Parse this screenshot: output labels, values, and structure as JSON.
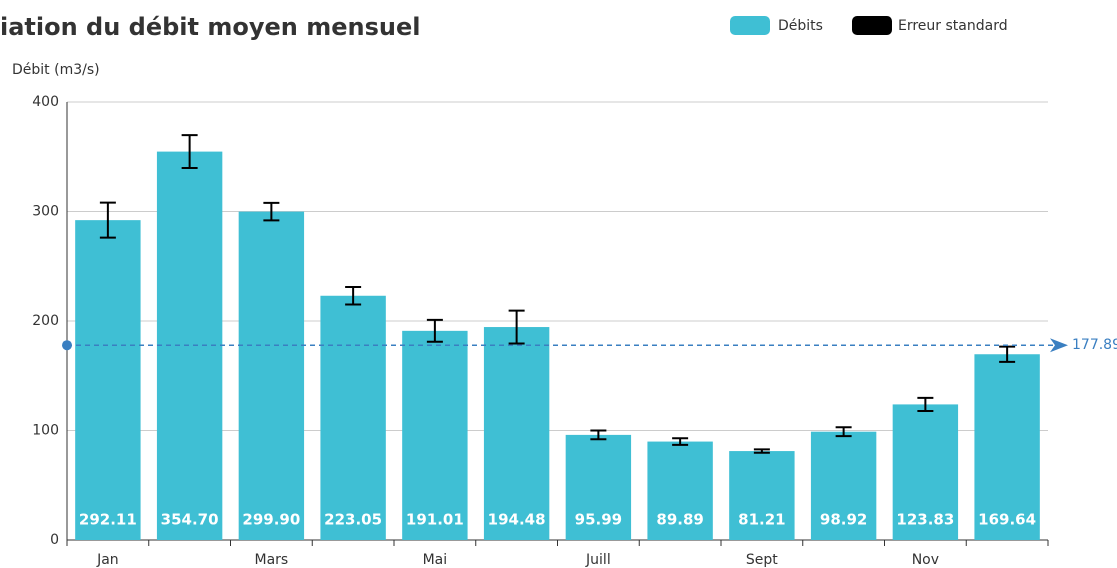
{
  "chart_data": {
    "type": "bar",
    "title": "iation du débit moyen mensuel",
    "y_label": "Débit (m3/s)",
    "categories": [
      "Jan",
      null,
      "Mars",
      null,
      "Mai",
      null,
      "Juill",
      null,
      "Sept",
      null,
      "Nov",
      null
    ],
    "series": [
      {
        "name": "Débits",
        "color": "#3fbfd4",
        "values": [
          292.11,
          354.7,
          299.9,
          223.05,
          191.01,
          194.48,
          95.99,
          89.89,
          81.21,
          98.92,
          123.83,
          169.64
        ],
        "value_labels": [
          "292.11",
          "354.70",
          "299.90",
          "223.05",
          "191.01",
          "194.48",
          "95.99",
          "89.89",
          "81.21",
          "98.92",
          "123.83",
          "169.64"
        ]
      },
      {
        "name": "Erreur standard",
        "color": "#000000",
        "values": [
          16,
          15,
          8,
          8,
          10,
          15,
          4,
          3,
          1.5,
          4,
          6,
          7
        ]
      }
    ],
    "mean_line": {
      "value": 177.89,
      "label": "177.89",
      "color": "#3a7fc1"
    },
    "ylim": [
      0,
      400
    ],
    "yticks": [
      0,
      100,
      200,
      300,
      400
    ],
    "grid": true,
    "legend": "top-right"
  }
}
